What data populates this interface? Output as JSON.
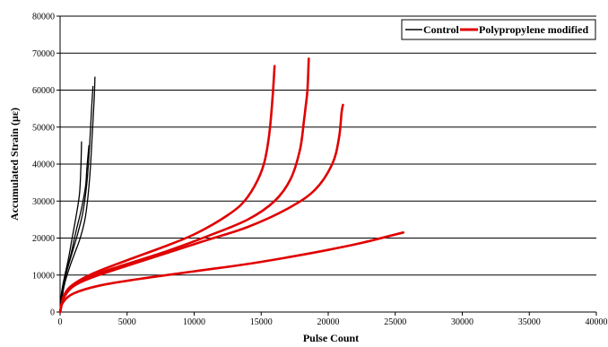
{
  "chart_data": {
    "type": "line",
    "title": "",
    "xlabel": "Pulse Count",
    "ylabel": "Accumulated Strain (με)",
    "xlim": [
      0,
      40000
    ],
    "ylim": [
      0,
      80000
    ],
    "x_ticks": [
      0,
      5000,
      10000,
      15000,
      20000,
      25000,
      30000,
      35000,
      40000
    ],
    "y_ticks": [
      0,
      10000,
      20000,
      30000,
      40000,
      50000,
      60000,
      70000,
      80000
    ],
    "x_tick_labels": [
      "0",
      "5000",
      "10000",
      "15000",
      "20000",
      "25000",
      "30000",
      "35000",
      "40000"
    ],
    "y_tick_labels": [
      "0",
      "10000",
      "20000",
      "30000",
      "40000",
      "50000",
      "60000",
      "70000",
      "80000"
    ],
    "grid": {
      "horizontal": true,
      "vertical": false
    },
    "legend": {
      "placement": "top-right",
      "entries": [
        {
          "label": "Control",
          "color": "#000000"
        },
        {
          "label": "Polypropylene modified",
          "color": "#e00000"
        }
      ]
    },
    "series": [
      {
        "name": "Control",
        "color": "#000000",
        "width": 1.3,
        "points": [
          [
            0,
            0
          ],
          [
            100,
            5000
          ],
          [
            300,
            9000
          ],
          [
            600,
            14000
          ],
          [
            900,
            20000
          ],
          [
            1200,
            26000
          ],
          [
            1450,
            32000
          ],
          [
            1550,
            39000
          ],
          [
            1600,
            46000
          ]
        ]
      },
      {
        "name": "Control",
        "color": "#000000",
        "width": 1.3,
        "points": [
          [
            0,
            0
          ],
          [
            150,
            5500
          ],
          [
            400,
            10000
          ],
          [
            800,
            15500
          ],
          [
            1200,
            22000
          ],
          [
            1600,
            28000
          ],
          [
            1900,
            34000
          ],
          [
            2000,
            39000
          ],
          [
            2150,
            45000
          ]
        ]
      },
      {
        "name": "Control",
        "color": "#000000",
        "width": 1.3,
        "points": [
          [
            0,
            0
          ],
          [
            200,
            6000
          ],
          [
            500,
            11000
          ],
          [
            900,
            16000
          ],
          [
            1300,
            21000
          ],
          [
            1700,
            27000
          ],
          [
            2000,
            35000
          ],
          [
            2200,
            45000
          ],
          [
            2350,
            55000
          ],
          [
            2450,
            61000
          ]
        ]
      },
      {
        "name": "Control",
        "color": "#000000",
        "width": 1.3,
        "points": [
          [
            0,
            0
          ],
          [
            300,
            7000
          ],
          [
            700,
            12000
          ],
          [
            1100,
            16000
          ],
          [
            1500,
            20000
          ],
          [
            1900,
            26000
          ],
          [
            2200,
            36000
          ],
          [
            2400,
            48000
          ],
          [
            2550,
            58000
          ],
          [
            2600,
            63500
          ]
        ]
      },
      {
        "name": "Polypropylene modified",
        "color": "#e00000",
        "width": 2.6,
        "points": [
          [
            0,
            0
          ],
          [
            300,
            4500
          ],
          [
            1000,
            7500
          ],
          [
            2500,
            10500
          ],
          [
            5000,
            14000
          ],
          [
            8000,
            18000
          ],
          [
            10000,
            21000
          ],
          [
            12000,
            25000
          ],
          [
            13500,
            29000
          ],
          [
            14500,
            34000
          ],
          [
            15200,
            40000
          ],
          [
            15600,
            48000
          ],
          [
            15850,
            58000
          ],
          [
            16000,
            66500
          ]
        ]
      },
      {
        "name": "Polypropylene modified",
        "color": "#e00000",
        "width": 2.6,
        "points": [
          [
            0,
            0
          ],
          [
            300,
            4500
          ],
          [
            1000,
            7500
          ],
          [
            2500,
            10000
          ],
          [
            5000,
            13000
          ],
          [
            8000,
            16500
          ],
          [
            11000,
            20500
          ],
          [
            14000,
            25000
          ],
          [
            16000,
            30000
          ],
          [
            17200,
            36000
          ],
          [
            17900,
            44000
          ],
          [
            18200,
            52000
          ],
          [
            18300,
            55000
          ],
          [
            18450,
            60000
          ],
          [
            18550,
            68500
          ]
        ]
      },
      {
        "name": "Polypropylene modified",
        "color": "#e00000",
        "width": 2.6,
        "points": [
          [
            0,
            0
          ],
          [
            300,
            4000
          ],
          [
            1000,
            7000
          ],
          [
            2500,
            9500
          ],
          [
            5000,
            12500
          ],
          [
            8000,
            16000
          ],
          [
            11000,
            19500
          ],
          [
            14000,
            23000
          ],
          [
            17000,
            28000
          ],
          [
            19000,
            33000
          ],
          [
            20300,
            40000
          ],
          [
            20800,
            47000
          ],
          [
            21000,
            54000
          ],
          [
            21100,
            56000
          ]
        ]
      },
      {
        "name": "Polypropylene modified",
        "color": "#e00000",
        "width": 2.6,
        "points": [
          [
            0,
            0
          ],
          [
            200,
            2500
          ],
          [
            1000,
            5000
          ],
          [
            3000,
            7200
          ],
          [
            6000,
            9000
          ],
          [
            10000,
            11000
          ],
          [
            14000,
            13000
          ],
          [
            17000,
            14800
          ],
          [
            20000,
            16800
          ],
          [
            22500,
            18700
          ],
          [
            24500,
            20500
          ],
          [
            25600,
            21500
          ]
        ]
      }
    ]
  }
}
